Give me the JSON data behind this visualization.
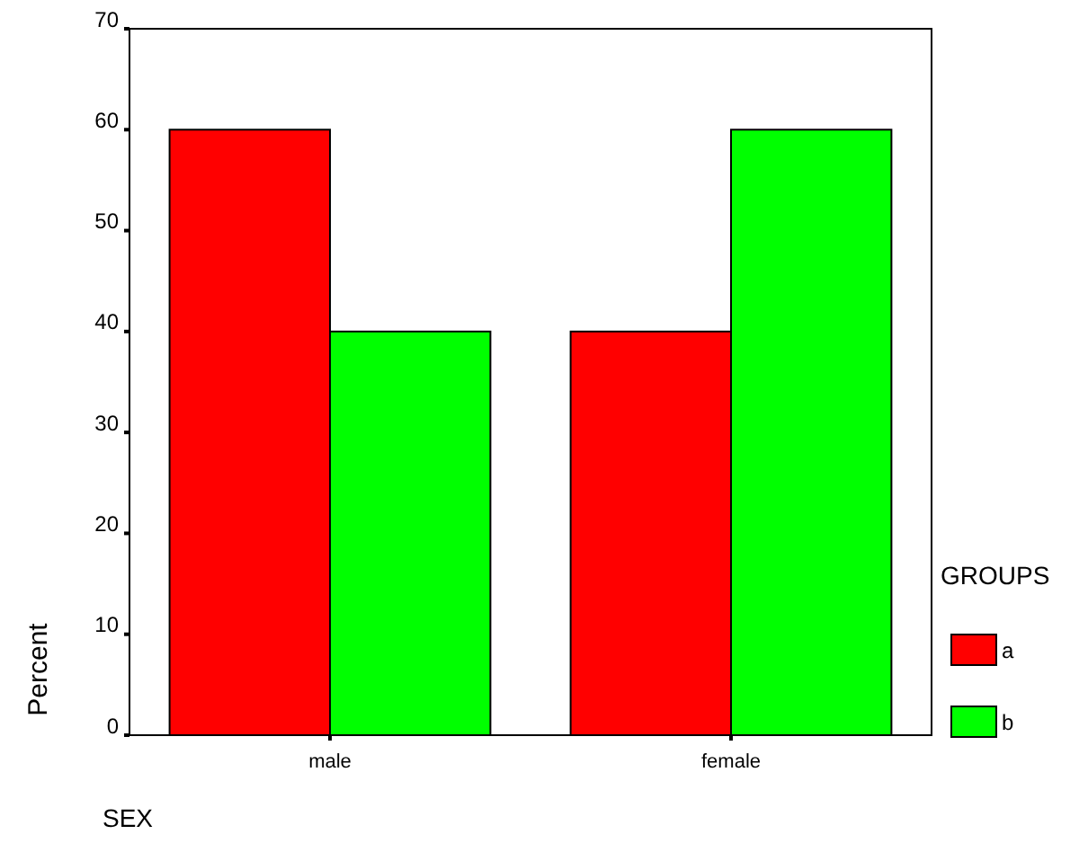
{
  "chart_data": {
    "type": "bar",
    "xlabel": "SEX",
    "ylabel": "Percent",
    "legend_title": "GROUPS",
    "categories": [
      "male",
      "female"
    ],
    "series": [
      {
        "name": "a",
        "color": "#ff0000",
        "values": [
          60,
          40
        ]
      },
      {
        "name": "b",
        "color": "#00ff00",
        "values": [
          40,
          60
        ]
      }
    ],
    "ylim": [
      0,
      70
    ],
    "yticks": [
      0,
      10,
      20,
      30,
      40,
      50,
      60,
      70
    ],
    "grid": false,
    "legend": "right"
  }
}
